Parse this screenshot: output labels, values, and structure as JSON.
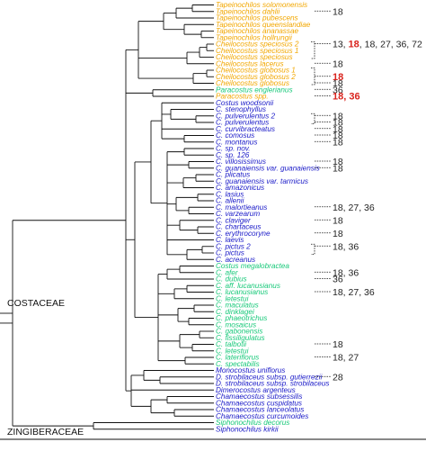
{
  "colors": {
    "yellow": "#f2a700",
    "green": "#19c97a",
    "blue": "#1a1ac8",
    "black": "#111111",
    "red": "#d9231d"
  },
  "families": [
    "COSTACEAE",
    "ZINGIBERACEAE"
  ],
  "taxa": [
    {
      "name": "Tapeinochilos solomonensis",
      "group": "yellow"
    },
    {
      "name": "Tapeinochilos dahlii",
      "group": "yellow"
    },
    {
      "name": "Tapeinochilos pubescens",
      "group": "yellow"
    },
    {
      "name": "Tapeinochilos queenslandiae",
      "group": "yellow"
    },
    {
      "name": "Tapeinochilos ananassae",
      "group": "yellow"
    },
    {
      "name": "Tapeinochilos hollrungii",
      "group": "yellow"
    },
    {
      "name": "Cheilocostus speciosus 2",
      "group": "yellow"
    },
    {
      "name": "Cheilocostus speciosus 1",
      "group": "yellow"
    },
    {
      "name": "Cheilocostus speciosus",
      "group": "yellow"
    },
    {
      "name": "Cheilocostus lacerus",
      "group": "yellow"
    },
    {
      "name": "Cheilocostus globosus 1",
      "group": "yellow"
    },
    {
      "name": "Cheilocostus globosus 2",
      "group": "yellow"
    },
    {
      "name": "Cheilocostus globosus",
      "group": "yellow"
    },
    {
      "name": "Paracostus englerianus",
      "group": "green"
    },
    {
      "name": "Paracostus spp.",
      "group": "yellow"
    },
    {
      "name": "Costus woodsonii",
      "group": "blue"
    },
    {
      "name": "C. stenophyllus",
      "group": "blue"
    },
    {
      "name": "C. pulverulentus 2",
      "group": "blue"
    },
    {
      "name": "C. pulverulentus",
      "group": "blue"
    },
    {
      "name": "C. curvibracteatus",
      "group": "blue"
    },
    {
      "name": "C. comosus",
      "group": "blue"
    },
    {
      "name": "C. montanus",
      "group": "blue"
    },
    {
      "name": "C. sp. nov.",
      "group": "blue"
    },
    {
      "name": "C. sp. 126",
      "group": "blue"
    },
    {
      "name": "C. villosissimus",
      "group": "blue"
    },
    {
      "name": "C. guanaiensis var. guanaiensis",
      "group": "blue"
    },
    {
      "name": "C. plicatus",
      "group": "blue"
    },
    {
      "name": "C. guanaiensis var. tarmicus",
      "group": "blue"
    },
    {
      "name": "C. amazonicus",
      "group": "blue"
    },
    {
      "name": "C. lasius",
      "group": "blue"
    },
    {
      "name": "C. allenii",
      "group": "blue"
    },
    {
      "name": "C. malortieanus",
      "group": "blue"
    },
    {
      "name": "C. varzearum",
      "group": "blue"
    },
    {
      "name": "C. claviger",
      "group": "blue"
    },
    {
      "name": "C. chartaceus",
      "group": "blue"
    },
    {
      "name": "C. erythrocoryne",
      "group": "blue"
    },
    {
      "name": "C. laevis",
      "group": "blue"
    },
    {
      "name": "C. pictus 2",
      "group": "blue"
    },
    {
      "name": "C. pictus",
      "group": "blue"
    },
    {
      "name": "C. acreanus",
      "group": "blue"
    },
    {
      "name": "Costus megalobractea",
      "group": "green"
    },
    {
      "name": "C. afer",
      "group": "green"
    },
    {
      "name": "C. dubius",
      "group": "green"
    },
    {
      "name": "C. aff. lucanusianus",
      "group": "green"
    },
    {
      "name": "C. lucanusianus",
      "group": "green"
    },
    {
      "name": "C. letestui",
      "group": "green"
    },
    {
      "name": "C. maculatus",
      "group": "green"
    },
    {
      "name": "C. dinklagei",
      "group": "green"
    },
    {
      "name": "C. phaeotrichus",
      "group": "green"
    },
    {
      "name": "C. mosaicus",
      "group": "green"
    },
    {
      "name": "C. gabonensis",
      "group": "green"
    },
    {
      "name": "C. fissiligulatus",
      "group": "green"
    },
    {
      "name": "C. talbotii",
      "group": "green"
    },
    {
      "name": "C. letestui",
      "group": "green"
    },
    {
      "name": "C. lateriflorus",
      "group": "green"
    },
    {
      "name": "C. spectabilis",
      "group": "green"
    },
    {
      "name": "Monocostus uniflorus",
      "group": "blue"
    },
    {
      "name": "D. strobilaceus subsp. gutierrezii",
      "group": "blue"
    },
    {
      "name": "D. strobilaceus subsp. strobilaceus",
      "group": "blue"
    },
    {
      "name": "Dimerocostus argenteus",
      "group": "blue"
    },
    {
      "name": "Chamaecostus subsessilis",
      "group": "blue"
    },
    {
      "name": "Chamaecostus cuspidatus",
      "group": "blue"
    },
    {
      "name": "Chamaecostus lanceolatus",
      "group": "blue"
    },
    {
      "name": "Chamaecostus curcumoides",
      "group": "blue"
    },
    {
      "name": "Siphonochilus decorus",
      "group": "green"
    },
    {
      "name": "Siphonochilus kirkii",
      "group": "blue"
    }
  ],
  "chromosome_labels": [
    {
      "tip": 1,
      "parts": [
        {
          "text": "18",
          "red": false
        }
      ]
    },
    {
      "tip": 6,
      "parts": [
        {
          "text": "13, ",
          "red": false
        },
        {
          "text": "18",
          "red": true
        },
        {
          "text": ", 18, 27, 36, 72",
          "red": false
        }
      ]
    },
    {
      "tip": 9,
      "parts": [
        {
          "text": "18",
          "red": false
        }
      ]
    },
    {
      "tip": 11,
      "parts": [
        {
          "text": "18",
          "red": true
        }
      ]
    },
    {
      "tip": 12,
      "parts": [
        {
          "text": "18",
          "red": false
        }
      ]
    },
    {
      "tip": 13,
      "parts": [
        {
          "text": "36",
          "red": false
        }
      ]
    },
    {
      "tip": 14,
      "parts": [
        {
          "text": "18, 36",
          "red": true
        }
      ]
    },
    {
      "tip": 17,
      "parts": [
        {
          "text": "18",
          "red": false
        }
      ]
    },
    {
      "tip": 18,
      "parts": [
        {
          "text": "18",
          "red": false
        }
      ]
    },
    {
      "tip": 19,
      "parts": [
        {
          "text": "18",
          "red": false
        }
      ]
    },
    {
      "tip": 20,
      "parts": [
        {
          "text": "18",
          "red": false
        }
      ]
    },
    {
      "tip": 21,
      "parts": [
        {
          "text": "18",
          "red": false
        }
      ]
    },
    {
      "tip": 24,
      "parts": [
        {
          "text": "18",
          "red": false
        }
      ]
    },
    {
      "tip": 25,
      "parts": [
        {
          "text": "18",
          "red": false
        }
      ]
    },
    {
      "tip": 31,
      "parts": [
        {
          "text": "18, 27, 36",
          "red": false
        }
      ]
    },
    {
      "tip": 33,
      "parts": [
        {
          "text": "18",
          "red": false
        }
      ]
    },
    {
      "tip": 35,
      "parts": [
        {
          "text": "18",
          "red": false
        }
      ]
    },
    {
      "tip": 37,
      "parts": [
        {
          "text": "18, 36",
          "red": false
        }
      ]
    },
    {
      "tip": 41,
      "parts": [
        {
          "text": "18, 36",
          "red": false
        }
      ]
    },
    {
      "tip": 42,
      "parts": [
        {
          "text": "36",
          "red": false
        }
      ]
    },
    {
      "tip": 44,
      "parts": [
        {
          "text": "18, 27, 36",
          "red": false
        }
      ]
    },
    {
      "tip": 52,
      "parts": [
        {
          "text": "18",
          "red": false
        }
      ]
    },
    {
      "tip": 54,
      "parts": [
        {
          "text": "18, 27",
          "red": false
        }
      ]
    },
    {
      "tip": 57,
      "parts": [
        {
          "text": "28",
          "red": false
        }
      ]
    }
  ]
}
